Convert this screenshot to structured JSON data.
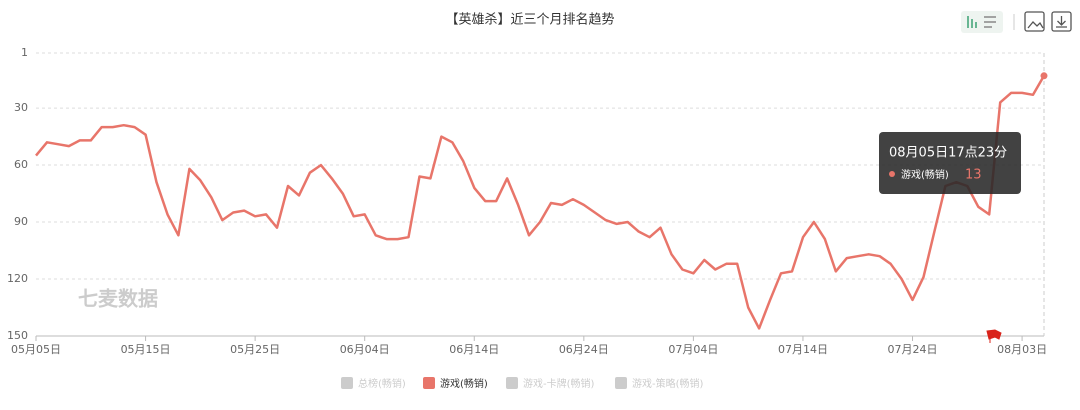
{
  "chart_data": {
    "type": "line",
    "title": "【英雄杀】近三个月排名趋势",
    "watermark": "七麦数据",
    "categories": [
      "05月05日",
      null,
      null,
      null,
      null,
      null,
      null,
      null,
      null,
      null,
      "05月15日",
      null,
      null,
      null,
      null,
      null,
      null,
      null,
      null,
      null,
      "05月25日",
      null,
      null,
      null,
      null,
      null,
      null,
      null,
      null,
      null,
      "06月04日",
      null,
      null,
      null,
      null,
      null,
      null,
      null,
      null,
      null,
      "06月14日",
      null,
      null,
      null,
      null,
      null,
      null,
      null,
      null,
      null,
      "06月24日",
      null,
      null,
      null,
      null,
      null,
      null,
      null,
      null,
      null,
      "07月04日",
      null,
      null,
      null,
      null,
      null,
      null,
      null,
      null,
      null,
      "07月14日",
      null,
      null,
      null,
      null,
      null,
      null,
      null,
      null,
      null,
      "07月24日",
      null,
      null,
      null,
      null,
      null,
      null,
      null,
      null,
      null,
      "08月03日",
      null,
      null
    ],
    "series": [
      {
        "name": "游戏(畅销)",
        "color": "#e8756a",
        "values": [
          55,
          48,
          49,
          50,
          47,
          47,
          40,
          40,
          39,
          40,
          44,
          69,
          86,
          97,
          62,
          68,
          77,
          89,
          85,
          84,
          87,
          86,
          93,
          71,
          76,
          64,
          60,
          67,
          75,
          87,
          86,
          97,
          99,
          99,
          98,
          66,
          67,
          45,
          48,
          58,
          72,
          79,
          79,
          67,
          81,
          97,
          90,
          80,
          81,
          78,
          81,
          85,
          89,
          91,
          90,
          95,
          98,
          93,
          107,
          115,
          117,
          110,
          115,
          112,
          112,
          135,
          146,
          131,
          117,
          116,
          98,
          90,
          99,
          116,
          109,
          108,
          107,
          108,
          112,
          120,
          131,
          119,
          95,
          71,
          69,
          71,
          82,
          86,
          27,
          22,
          22,
          23,
          13
        ]
      }
    ],
    "legend": [
      {
        "name": "总榜(畅销)",
        "active": false
      },
      {
        "name": "游戏(畅销)",
        "active": true
      },
      {
        "name": "游戏-卡牌(畅销)",
        "active": false
      },
      {
        "name": "游戏-策略(畅销)",
        "active": false
      }
    ],
    "inactive_color": "#ccc",
    "ylim": [
      1,
      150
    ],
    "y_inverted": true,
    "yticks": [
      1,
      30,
      60,
      90,
      120,
      150
    ],
    "grid": true,
    "tooltip": {
      "title": "08月05日17点23分",
      "index": 92
    }
  }
}
